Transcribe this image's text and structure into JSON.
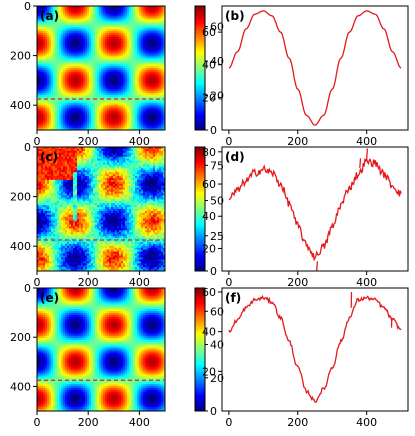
{
  "figure": {
    "colormap": "jet",
    "line_color": "#e41a1c",
    "dash_color": "#d62728"
  },
  "chart_data": [
    {
      "panel": "(a)",
      "type": "heatmap",
      "extent_x": [
        0,
        500
      ],
      "extent_y": [
        0,
        500
      ],
      "xticks": [
        0,
        200,
        400
      ],
      "yticks": [
        0,
        200,
        400
      ],
      "z_range": [
        0,
        72
      ],
      "colorbar_ticks": [
        0,
        20,
        40,
        60
      ],
      "field": "(1 - cos(2*pi*x/300)*cos(2*pi*y/300)) with peaks near x,y = 100, 250, 400",
      "noise": "none",
      "cut_line_y": 375,
      "grid": false
    },
    {
      "panel": "(b)",
      "type": "line",
      "xlim": [
        -20,
        520
      ],
      "ylim": [
        0,
        76
      ],
      "xticks": [
        0,
        200,
        400
      ],
      "yticks": [
        20,
        40,
        60
      ],
      "x": [
        0,
        25,
        50,
        75,
        100,
        125,
        150,
        175,
        200,
        225,
        250,
        275,
        300,
        325,
        350,
        375,
        400,
        425,
        450,
        475,
        500
      ],
      "y": [
        38,
        48,
        62,
        71,
        73,
        70,
        60,
        44,
        25,
        9,
        3,
        9,
        25,
        44,
        60,
        70,
        73,
        71,
        62,
        48,
        38
      ],
      "noise": "none",
      "grid": false
    },
    {
      "panel": "(c)",
      "type": "heatmap",
      "extent_x": [
        0,
        500
      ],
      "extent_y": [
        0,
        500
      ],
      "xticks": [
        0,
        200,
        400
      ],
      "yticks": [
        0,
        200,
        400
      ],
      "z_range": [
        0,
        88
      ],
      "colorbar_ticks": [
        0,
        25,
        50,
        75
      ],
      "field": "same as (a) with noisy reconstruction and a saturated patch in the upper-left",
      "noise": "speckle",
      "cut_line_y": 375,
      "grid": false
    },
    {
      "panel": "(d)",
      "type": "line",
      "xlim": [
        -20,
        520
      ],
      "ylim": [
        6,
        83
      ],
      "xticks": [
        0,
        200,
        400
      ],
      "yticks": [
        20,
        40,
        60,
        80
      ],
      "x": [
        0,
        25,
        50,
        75,
        100,
        125,
        150,
        175,
        200,
        225,
        250,
        275,
        300,
        325,
        350,
        375,
        400,
        425,
        450,
        475,
        500
      ],
      "y": [
        51,
        56,
        62,
        67,
        69,
        67,
        60,
        48,
        34,
        22,
        15,
        21,
        33,
        47,
        58,
        66,
        74,
        73,
        66,
        59,
        54
      ],
      "noise": "high",
      "grid": false
    },
    {
      "panel": "(e)",
      "type": "heatmap",
      "extent_x": [
        0,
        500
      ],
      "extent_y": [
        0,
        500
      ],
      "xticks": [
        0,
        200,
        400
      ],
      "yticks": [
        0,
        200,
        400
      ],
      "z_range": [
        0,
        74
      ],
      "colorbar_ticks": [
        0,
        20,
        40,
        60
      ],
      "field": "same as (a), clean reconstruction",
      "noise": "none",
      "cut_line_y": 375,
      "grid": false
    },
    {
      "panel": "(f)",
      "type": "line",
      "xlim": [
        -20,
        520
      ],
      "ylim": [
        0,
        62
      ],
      "xticks": [
        0,
        200,
        400
      ],
      "yticks": [
        20,
        40,
        60
      ],
      "x": [
        0,
        25,
        50,
        75,
        100,
        125,
        150,
        175,
        200,
        225,
        250,
        275,
        300,
        325,
        350,
        375,
        400,
        425,
        450,
        475,
        500
      ],
      "y": [
        40,
        46,
        52,
        56,
        57,
        55,
        47,
        35,
        22,
        10,
        5,
        11,
        22,
        35,
        47,
        56,
        57,
        56,
        52,
        46,
        41
      ],
      "noise": "low",
      "grid": false
    }
  ]
}
